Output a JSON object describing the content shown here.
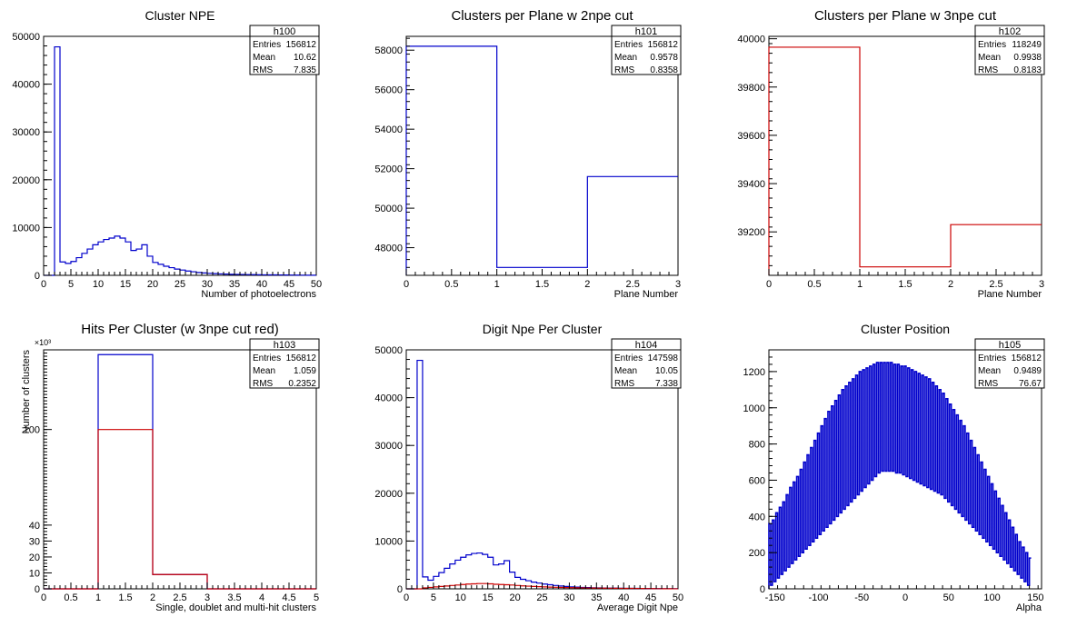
{
  "chart_data": [
    {
      "type": "histogram",
      "title": "Cluster NPE",
      "xlabel": "Number of photoelectrons",
      "ylabel": "",
      "xlim": [
        0,
        50
      ],
      "ylim": [
        0,
        50000
      ],
      "xticks": [
        0,
        5,
        10,
        15,
        20,
        25,
        30,
        35,
        40,
        45,
        50
      ],
      "yticks": [
        0,
        10000,
        20000,
        30000,
        40000,
        50000
      ],
      "stats": {
        "name": "h100",
        "entries_label": "Entries",
        "entries": "156812",
        "mean_label": "Mean",
        "mean": "10.62",
        "rms_label": "RMS",
        "rms": "7.835"
      },
      "series": [
        {
          "color": "#0000cc",
          "edges": [
            0,
            1,
            2,
            3,
            4,
            5,
            6,
            7,
            8,
            9,
            10,
            11,
            12,
            13,
            14,
            15,
            16,
            17,
            18,
            19,
            20,
            21,
            22,
            23,
            24,
            25,
            26,
            27,
            28,
            29,
            30,
            31,
            32,
            33,
            34,
            35,
            36,
            37,
            38,
            39,
            40,
            41,
            42,
            43,
            44,
            45,
            46,
            47,
            48,
            49,
            50
          ],
          "values": [
            0,
            0,
            47800,
            2800,
            2500,
            2900,
            3700,
            4600,
            5500,
            6400,
            7000,
            7500,
            7800,
            8200,
            7800,
            7000,
            5200,
            5500,
            6400,
            4000,
            2700,
            2300,
            1900,
            1600,
            1300,
            1100,
            900,
            750,
            600,
            500,
            420,
            360,
            300,
            260,
            220,
            200,
            180,
            150,
            140,
            120,
            110,
            100,
            90,
            80,
            70,
            60,
            50,
            40,
            30,
            20
          ]
        }
      ]
    },
    {
      "type": "histogram",
      "title": "Clusters per Plane w 2npe cut",
      "xlabel": "Plane Number",
      "ylabel": "",
      "xlim": [
        0,
        3
      ],
      "ylim": [
        46600,
        58700
      ],
      "xticks": [
        0,
        0.5,
        1,
        1.5,
        2,
        2.5,
        3
      ],
      "yticks": [
        48000,
        50000,
        52000,
        54000,
        56000,
        58000
      ],
      "stats": {
        "name": "h101",
        "entries_label": "Entries",
        "entries": "156812",
        "mean_label": "Mean",
        "mean": "0.9578",
        "rms_label": "RMS",
        "rms": "0.8358"
      },
      "series": [
        {
          "color": "#0000cc",
          "edges": [
            0,
            1,
            2,
            3
          ],
          "values": [
            58200,
            47000,
            51600
          ]
        }
      ]
    },
    {
      "type": "histogram",
      "title": "Clusters per Plane w 3npe cut",
      "xlabel": "Plane Number",
      "ylabel": "",
      "xlim": [
        0,
        3
      ],
      "ylim": [
        39020,
        40010
      ],
      "xticks": [
        0,
        0.5,
        1,
        1.5,
        2,
        2.5,
        3
      ],
      "yticks": [
        39200,
        39400,
        39600,
        39800,
        40000
      ],
      "stats": {
        "name": "h102",
        "entries_label": "Entries",
        "entries": "118249",
        "mean_label": "Mean",
        "mean": "0.9938",
        "rms_label": "RMS",
        "rms": "0.8183"
      },
      "series": [
        {
          "color": "#cc0000",
          "edges": [
            0,
            1,
            2,
            3
          ],
          "values": [
            39965,
            39055,
            39230
          ]
        }
      ]
    },
    {
      "type": "histogram",
      "title": "Hits Per Cluster (w 3npe cut red)",
      "xlabel": "Single, doublet and multi-hit clusters",
      "ylabel": "Number of clusters",
      "multiplier_label": "×10³",
      "xlim": [
        0,
        5
      ],
      "ylim": [
        0,
        150
      ],
      "xticks": [
        0,
        0.5,
        1,
        1.5,
        2,
        2.5,
        3,
        3.5,
        4,
        4.5,
        5
      ],
      "yticks": [
        0,
        10,
        20,
        30,
        40,
        100
      ],
      "stats": {
        "name": "h103",
        "entries_label": "Entries",
        "entries": "156812",
        "mean_label": "Mean",
        "mean": "1.059",
        "rms_label": "RMS",
        "rms": "0.2352"
      },
      "series": [
        {
          "color": "#0000cc",
          "edges": [
            0,
            1,
            2,
            3,
            5
          ],
          "values": [
            0,
            147,
            9,
            0
          ]
        },
        {
          "color": "#cc0000",
          "edges": [
            0,
            1,
            2,
            3,
            5
          ],
          "values": [
            0,
            100,
            9,
            0
          ]
        }
      ]
    },
    {
      "type": "histogram",
      "title": "Digit Npe Per Cluster",
      "xlabel": "Average Digit Npe",
      "ylabel": "",
      "xlim": [
        0,
        50
      ],
      "ylim": [
        0,
        50000
      ],
      "xticks": [
        0,
        5,
        10,
        15,
        20,
        25,
        30,
        35,
        40,
        45,
        50
      ],
      "yticks": [
        0,
        10000,
        20000,
        30000,
        40000,
        50000
      ],
      "stats": {
        "name": "h104",
        "entries_label": "Entries",
        "entries": "147598",
        "mean_label": "Mean",
        "mean": "10.05",
        "rms_label": "RMS",
        "rms": "7.338"
      },
      "series": [
        {
          "color": "#0000cc",
          "edges": [
            0,
            1,
            2,
            3,
            4,
            5,
            6,
            7,
            8,
            9,
            10,
            11,
            12,
            13,
            14,
            15,
            16,
            17,
            18,
            19,
            20,
            21,
            22,
            23,
            24,
            25,
            26,
            27,
            28,
            29,
            30,
            31,
            32,
            33,
            34,
            35,
            36,
            37,
            38,
            39,
            40,
            41,
            42,
            43,
            44,
            45,
            46,
            47,
            48,
            49,
            50
          ],
          "values": [
            0,
            0,
            47800,
            2500,
            1800,
            2600,
            3400,
            4300,
            5200,
            6000,
            6600,
            7100,
            7400,
            7500,
            7200,
            6600,
            5000,
            5200,
            5900,
            3500,
            2400,
            2000,
            1700,
            1400,
            1200,
            1000,
            850,
            700,
            600,
            500,
            420,
            360,
            300,
            260,
            220,
            200,
            180,
            150,
            140,
            120,
            110,
            100,
            90,
            80,
            70,
            60,
            50,
            40,
            30,
            20
          ]
        },
        {
          "color": "#cc0000",
          "edges": [
            0,
            1,
            2,
            3,
            4,
            5,
            6,
            7,
            8,
            9,
            10,
            11,
            12,
            13,
            14,
            15,
            16,
            17,
            18,
            19,
            20,
            21,
            22,
            23,
            24,
            25,
            26,
            27,
            28,
            29,
            30,
            31,
            32,
            33,
            34,
            35,
            36,
            37,
            38,
            39,
            40,
            41,
            42,
            43,
            44,
            45,
            46,
            47,
            48,
            49,
            50
          ],
          "values": [
            0,
            0,
            0,
            200,
            300,
            400,
            500,
            600,
            700,
            800,
            900,
            1000,
            1050,
            1100,
            1100,
            1050,
            950,
            900,
            850,
            800,
            700,
            620,
            560,
            500,
            450,
            400,
            360,
            320,
            290,
            260,
            240,
            220,
            200,
            180,
            160,
            150,
            140,
            130,
            120,
            110,
            100,
            90,
            80,
            70,
            60,
            50,
            40,
            30,
            20,
            10
          ]
        }
      ]
    },
    {
      "type": "histogram",
      "title": "Cluster Position",
      "xlabel": "Alpha",
      "ylabel": "",
      "xlim": [
        -157,
        157
      ],
      "ylim": [
        0,
        1320
      ],
      "xticks": [
        -150,
        -100,
        -50,
        0,
        50,
        100,
        150
      ],
      "yticks": [
        0,
        200,
        400,
        600,
        800,
        1000,
        1200
      ],
      "stats": {
        "name": "h105",
        "entries_label": "Entries",
        "entries": "156812",
        "mean_label": "Mean",
        "mean": "0.9489",
        "rms_label": "RMS",
        "rms": "76.67"
      },
      "series": [
        {
          "color": "#0000cc",
          "edges_range": [
            -157,
            157
          ],
          "nbins": 157,
          "values": [
            360,
            20,
            380,
            40,
            420,
            60,
            450,
            80,
            480,
            100,
            520,
            120,
            560,
            140,
            590,
            160,
            620,
            180,
            660,
            200,
            700,
            220,
            740,
            240,
            780,
            260,
            820,
            280,
            860,
            300,
            900,
            320,
            940,
            340,
            980,
            360,
            1010,
            380,
            1040,
            400,
            1070,
            420,
            1100,
            440,
            1120,
            460,
            1140,
            480,
            1160,
            500,
            1180,
            520,
            1200,
            540,
            1210,
            560,
            1220,
            580,
            1230,
            600,
            1240,
            620,
            1250,
            640,
            1250,
            650,
            1250,
            650,
            1250,
            650,
            1250,
            650,
            1240,
            640,
            1240,
            640,
            1230,
            630,
            1230,
            620,
            1220,
            610,
            1210,
            600,
            1200,
            590,
            1190,
            580,
            1180,
            570,
            1170,
            560,
            1160,
            550,
            1140,
            540,
            1120,
            530,
            1100,
            520,
            1080,
            500,
            1050,
            480,
            1020,
            460,
            990,
            440,
            960,
            420,
            930,
            400,
            900,
            380,
            860,
            360,
            820,
            340,
            780,
            320,
            740,
            300,
            700,
            280,
            660,
            260,
            620,
            240,
            580,
            220,
            540,
            200,
            500,
            180,
            460,
            160,
            420,
            140,
            380,
            120,
            340,
            100,
            300,
            80,
            260,
            60,
            230,
            40,
            200,
            20,
            170
          ]
        }
      ]
    }
  ]
}
